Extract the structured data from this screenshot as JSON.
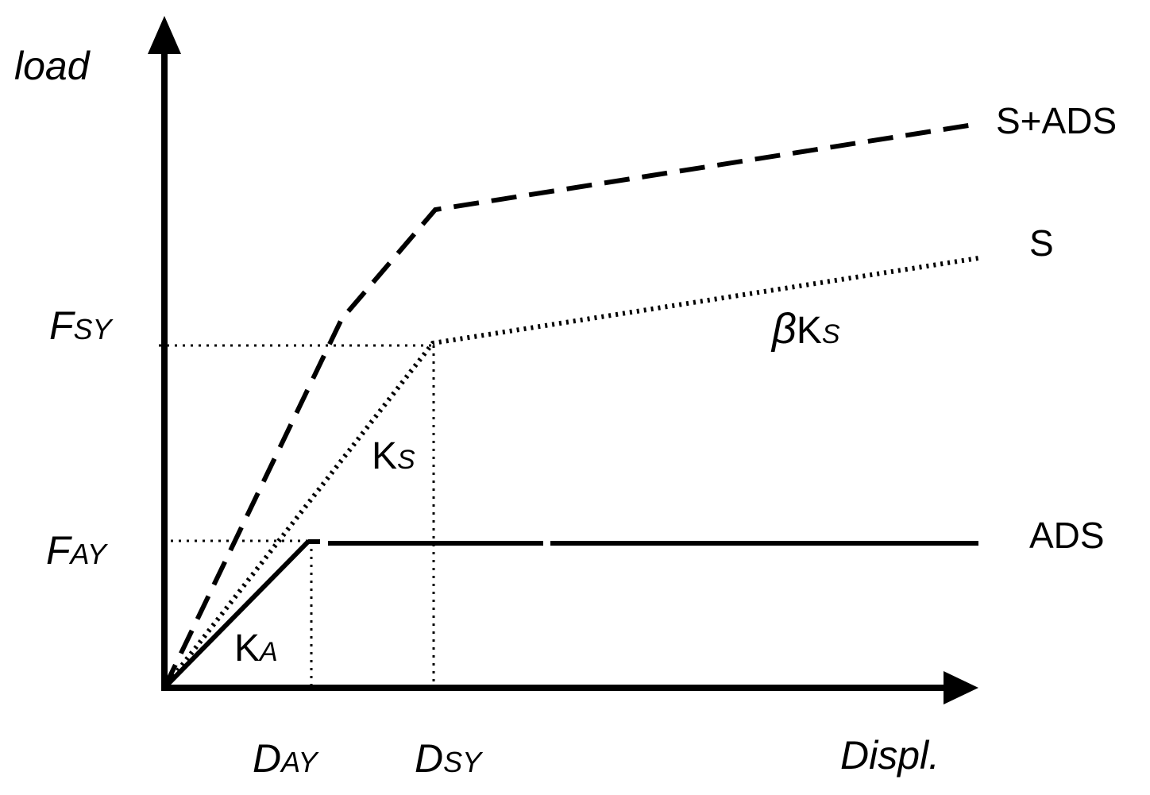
{
  "axes": {
    "y_label": "load",
    "x_label": "Displ."
  },
  "force_labels": [
    {
      "main": "F",
      "sub": "SY"
    },
    {
      "main": "F",
      "sub": "AY"
    }
  ],
  "disp_labels": [
    {
      "main": "D",
      "sub": "AY"
    },
    {
      "main": "D",
      "sub": "SY"
    }
  ],
  "stiffness_labels": {
    "ka": {
      "main": "K",
      "sub": "A"
    },
    "ks": {
      "main": "K",
      "sub": "S"
    },
    "bks": {
      "prefix": "β",
      "main": "K",
      "sub": "S"
    }
  },
  "curves": {
    "s_ads": "S+ADS",
    "s": "S",
    "ads": "ADS"
  }
}
